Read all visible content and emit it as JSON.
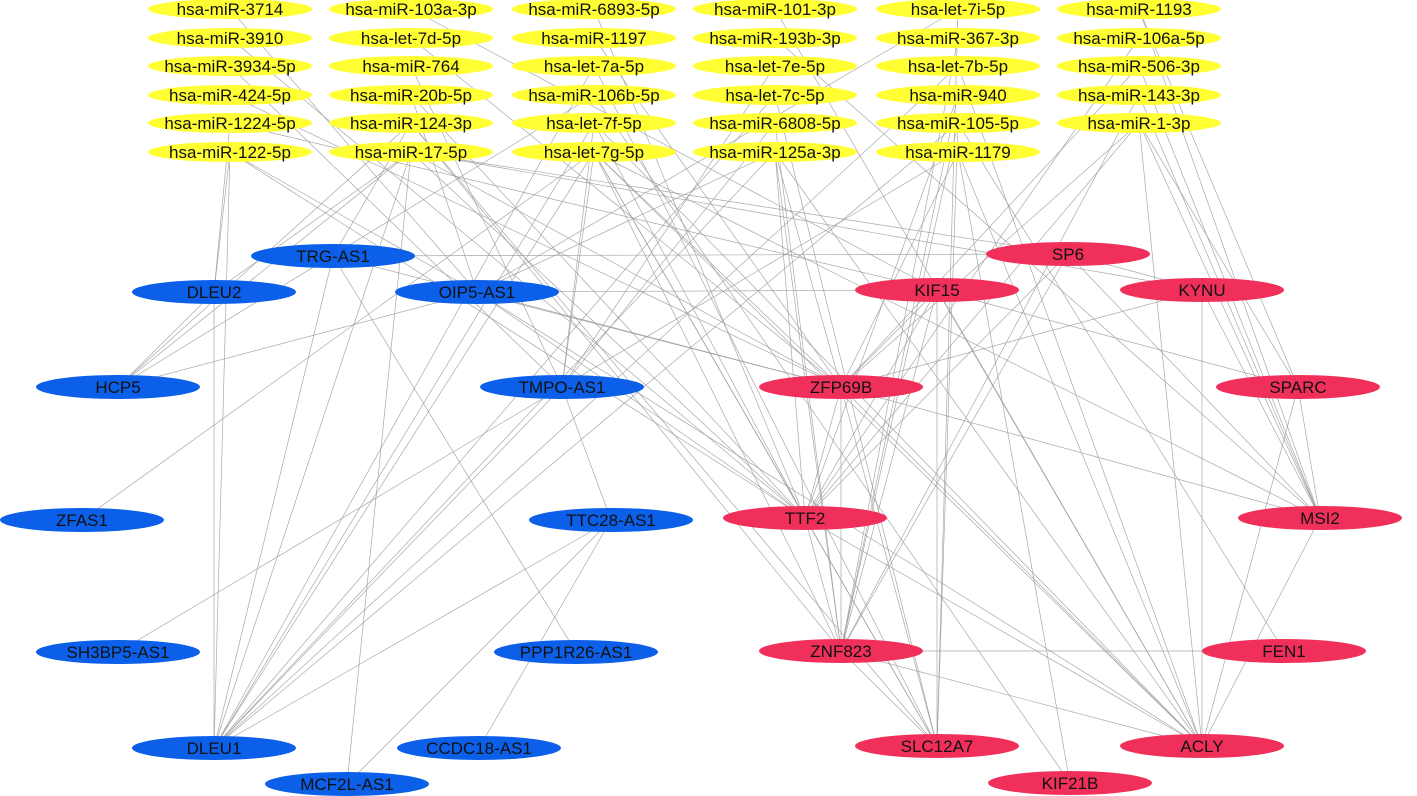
{
  "colors": {
    "mirna": "#ffff33",
    "lncrna": "#0b5fe8",
    "mrna": "#f0305a",
    "edge": "#9a9a9a",
    "text": "#111111"
  },
  "mirna_nodes": [
    "hsa-miR-3714",
    "hsa-miR-103a-3p",
    "hsa-miR-6893-5p",
    "hsa-miR-101-3p",
    "hsa-let-7i-5p",
    "hsa-miR-1193",
    "hsa-miR-3910",
    "hsa-let-7d-5p",
    "hsa-miR-1197",
    "hsa-miR-193b-3p",
    "hsa-miR-367-3p",
    "hsa-miR-106a-5p",
    "hsa-miR-3934-5p",
    "hsa-miR-764",
    "hsa-let-7a-5p",
    "hsa-let-7e-5p",
    "hsa-let-7b-5p",
    "hsa-miR-506-3p",
    "hsa-miR-424-5p",
    "hsa-miR-20b-5p",
    "hsa-miR-106b-5p",
    "hsa-let-7c-5p",
    "hsa-miR-940",
    "hsa-miR-143-3p",
    "hsa-miR-1224-5p",
    "hsa-miR-124-3p",
    "hsa-let-7f-5p",
    "hsa-miR-6808-5p",
    "hsa-miR-105-5p",
    "hsa-miR-1-3p",
    "hsa-miR-122-5p",
    "hsa-miR-17-5p",
    "hsa-let-7g-5p",
    "hsa-miR-125a-3p",
    "hsa-miR-1179"
  ],
  "lncrna_nodes": [
    "TRG-AS1",
    "DLEU2",
    "OIP5-AS1",
    "HCP5",
    "TMPO-AS1",
    "ZFAS1",
    "TTC28-AS1",
    "SH3BP5-AS1",
    "PPP1R26-AS1",
    "DLEU1",
    "CCDC18-AS1",
    "MCF2L-AS1"
  ],
  "mrna_nodes": [
    "SP6",
    "KIF15",
    "KYNU",
    "ZFP69B",
    "SPARC",
    "TTF2",
    "MSI2",
    "ZNF823",
    "FEN1",
    "SLC12A7",
    "ACLY",
    "KIF21B"
  ],
  "edges": [
    [
      "hsa-miR-122-5p",
      "DLEU1"
    ],
    [
      "hsa-miR-122-5p",
      "DLEU2"
    ],
    [
      "hsa-miR-122-5p",
      "OIP5-AS1"
    ],
    [
      "hsa-miR-122-5p",
      "TTF2"
    ],
    [
      "hsa-miR-1224-5p",
      "DLEU2"
    ],
    [
      "hsa-miR-1224-5p",
      "KIF15"
    ],
    [
      "hsa-miR-424-5p",
      "ZFP69B"
    ],
    [
      "hsa-miR-3934-5p",
      "TMPO-AS1"
    ],
    [
      "hsa-miR-3910",
      "TTF2"
    ],
    [
      "hsa-miR-3714",
      "OIP5-AS1"
    ],
    [
      "hsa-miR-17-5p",
      "DLEU2"
    ],
    [
      "hsa-miR-17-5p",
      "HCP5"
    ],
    [
      "hsa-miR-17-5p",
      "DLEU1"
    ],
    [
      "hsa-miR-17-5p",
      "ZFP69B"
    ],
    [
      "hsa-miR-17-5p",
      "TTF2"
    ],
    [
      "hsa-miR-17-5p",
      "SP6"
    ],
    [
      "hsa-miR-17-5p",
      "KYNU"
    ],
    [
      "hsa-miR-17-5p",
      "MCF2L-AS1"
    ],
    [
      "hsa-miR-124-3p",
      "HCP5"
    ],
    [
      "hsa-miR-124-3p",
      "TRG-AS1"
    ],
    [
      "hsa-miR-124-3p",
      "ZNF823"
    ],
    [
      "hsa-miR-124-3p",
      "SLC12A7"
    ],
    [
      "hsa-miR-20b-5p",
      "OIP5-AS1"
    ],
    [
      "hsa-miR-20b-5p",
      "TTF2"
    ],
    [
      "hsa-miR-764",
      "TMPO-AS1"
    ],
    [
      "hsa-let-7d-5p",
      "ZFP69B"
    ],
    [
      "hsa-miR-103a-3p",
      "KIF15"
    ],
    [
      "hsa-let-7g-5p",
      "ZFAS1"
    ],
    [
      "hsa-let-7g-5p",
      "DLEU1"
    ],
    [
      "hsa-let-7g-5p",
      "TMPO-AS1"
    ],
    [
      "hsa-let-7g-5p",
      "ZFP69B"
    ],
    [
      "hsa-let-7g-5p",
      "TTF2"
    ],
    [
      "hsa-let-7g-5p",
      "ZNF823"
    ],
    [
      "hsa-let-7g-5p",
      "SLC12A7"
    ],
    [
      "hsa-let-7g-5p",
      "ACLY"
    ],
    [
      "hsa-let-7g-5p",
      "MSI2"
    ],
    [
      "hsa-let-7f-5p",
      "DLEU1"
    ],
    [
      "hsa-let-7f-5p",
      "TMPO-AS1"
    ],
    [
      "hsa-let-7f-5p",
      "TTF2"
    ],
    [
      "hsa-let-7f-5p",
      "ACLY"
    ],
    [
      "hsa-miR-106b-5p",
      "HCP5"
    ],
    [
      "hsa-miR-106b-5p",
      "KIF21B"
    ],
    [
      "hsa-let-7a-5p",
      "DLEU1"
    ],
    [
      "hsa-let-7a-5p",
      "SLC12A7"
    ],
    [
      "hsa-miR-1197",
      "ZFP69B"
    ],
    [
      "hsa-miR-6893-5p",
      "TTF2"
    ],
    [
      "hsa-miR-125a-3p",
      "DLEU1"
    ],
    [
      "hsa-miR-125a-3p",
      "OIP5-AS1"
    ],
    [
      "hsa-miR-125a-3p",
      "ZFP69B"
    ],
    [
      "hsa-miR-125a-3p",
      "TTF2"
    ],
    [
      "hsa-miR-125a-3p",
      "ZNF823"
    ],
    [
      "hsa-miR-125a-3p",
      "ACLY"
    ],
    [
      "hsa-miR-6808-5p",
      "TMPO-AS1"
    ],
    [
      "hsa-miR-6808-5p",
      "ZNF823"
    ],
    [
      "hsa-let-7c-5p",
      "DLEU1"
    ],
    [
      "hsa-let-7c-5p",
      "SLC12A7"
    ],
    [
      "hsa-let-7e-5p",
      "TMPO-AS1"
    ],
    [
      "hsa-miR-193b-3p",
      "MSI2"
    ],
    [
      "hsa-miR-101-3p",
      "ACLY"
    ],
    [
      "hsa-miR-1179",
      "TMPO-AS1"
    ],
    [
      "hsa-miR-1179",
      "KIF21B"
    ],
    [
      "hsa-miR-1179",
      "ACLY"
    ],
    [
      "hsa-miR-1179",
      "ZFP69B"
    ],
    [
      "hsa-miR-105-5p",
      "DLEU1"
    ],
    [
      "hsa-miR-105-5p",
      "ZNF823"
    ],
    [
      "hsa-miR-105-5p",
      "SLC12A7"
    ],
    [
      "hsa-miR-105-5p",
      "FEN1"
    ],
    [
      "hsa-miR-940",
      "ZNF823"
    ],
    [
      "hsa-miR-940",
      "TTF2"
    ],
    [
      "hsa-let-7b-5p",
      "DLEU1"
    ],
    [
      "hsa-let-7b-5p",
      "ACLY"
    ],
    [
      "hsa-miR-367-3p",
      "ZNF823"
    ],
    [
      "hsa-let-7i-5p",
      "OIP5-AS1"
    ],
    [
      "hsa-let-7i-5p",
      "SLC12A7"
    ],
    [
      "hsa-miR-1-3p",
      "ZFP69B"
    ],
    [
      "hsa-miR-1-3p",
      "TTF2"
    ],
    [
      "hsa-miR-1-3p",
      "ACLY"
    ],
    [
      "hsa-miR-1-3p",
      "MSI2"
    ],
    [
      "hsa-miR-1-3p",
      "SPARC"
    ],
    [
      "hsa-miR-143-3p",
      "MSI2"
    ],
    [
      "hsa-miR-143-3p",
      "ZNF823"
    ],
    [
      "hsa-miR-506-3p",
      "ZFP69B"
    ],
    [
      "hsa-miR-506-3p",
      "MSI2"
    ],
    [
      "hsa-miR-106a-5p",
      "TTF2"
    ],
    [
      "hsa-miR-1193",
      "MSI2"
    ],
    [
      "hsa-miR-1193",
      "SPARC"
    ],
    [
      "TRG-AS1",
      "SP6"
    ],
    [
      "TRG-AS1",
      "ZFP69B"
    ],
    [
      "TRG-AS1",
      "DLEU1"
    ],
    [
      "TRG-AS1",
      "PPP1R26-AS1"
    ],
    [
      "DLEU2",
      "DLEU1"
    ],
    [
      "DLEU2",
      "HCP5"
    ],
    [
      "OIP5-AS1",
      "HCP5"
    ],
    [
      "OIP5-AS1",
      "TTF2"
    ],
    [
      "OIP5-AS1",
      "KIF15"
    ],
    [
      "OIP5-AS1",
      "ZFP69B"
    ],
    [
      "OIP5-AS1",
      "ACLY"
    ],
    [
      "TMPO-AS1",
      "DLEU1"
    ],
    [
      "TMPO-AS1",
      "TTC28-AS1"
    ],
    [
      "TMPO-AS1",
      "SH3BP5-AS1"
    ],
    [
      "TTC28-AS1",
      "DLEU1"
    ],
    [
      "TTC28-AS1",
      "MCF2L-AS1"
    ],
    [
      "CCDC18-AS1",
      "TTC28-AS1"
    ],
    [
      "SP6",
      "KYNU"
    ],
    [
      "SP6",
      "MSI2"
    ],
    [
      "SP6",
      "ZNF823"
    ],
    [
      "SP6",
      "TTF2"
    ],
    [
      "KIF15",
      "TTF2"
    ],
    [
      "KIF15",
      "ZFP69B"
    ],
    [
      "KIF15",
      "SLC12A7"
    ],
    [
      "KIF15",
      "ACLY"
    ],
    [
      "KIF15",
      "ZNF823"
    ],
    [
      "KIF15",
      "SPARC"
    ],
    [
      "KYNU",
      "ZFP69B"
    ],
    [
      "KYNU",
      "MSI2"
    ],
    [
      "KYNU",
      "ACLY"
    ],
    [
      "ZFP69B",
      "ZNF823"
    ],
    [
      "ZFP69B",
      "TTF2"
    ],
    [
      "ZFP69B",
      "SLC12A7"
    ],
    [
      "ZFP69B",
      "MSI2"
    ],
    [
      "ZFP69B",
      "ACLY"
    ],
    [
      "TTF2",
      "SLC12A7"
    ],
    [
      "TTF2",
      "ACLY"
    ],
    [
      "TTF2",
      "ZNF823"
    ],
    [
      "ZNF823",
      "SLC12A7"
    ],
    [
      "ZNF823",
      "ACLY"
    ],
    [
      "SPARC",
      "MSI2"
    ],
    [
      "SPARC",
      "ACLY"
    ],
    [
      "FEN1",
      "ZNF823"
    ],
    [
      "MSI2",
      "ACLY"
    ]
  ]
}
